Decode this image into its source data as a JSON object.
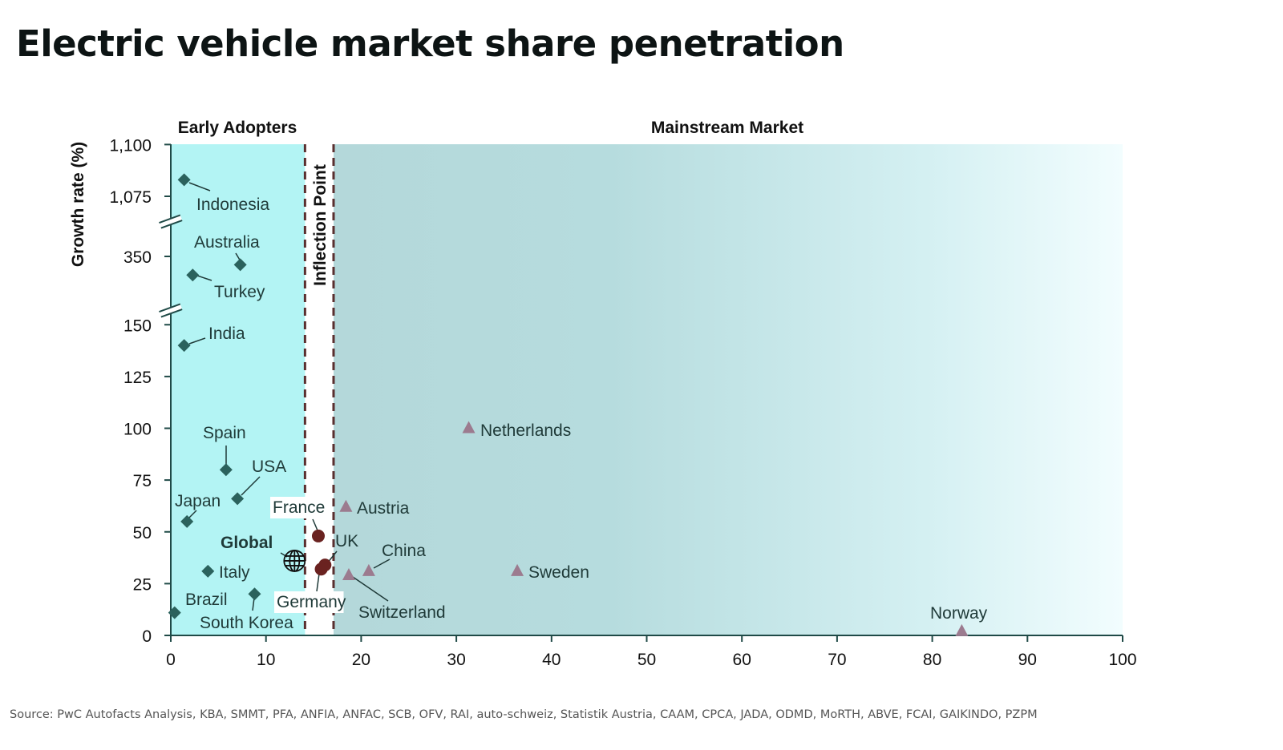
{
  "title": "Electric vehicle market share penetration",
  "source": "Source: PwC Autofacts Analysis, KBA, SMMT, PFA, ANFIA, ANFAC, SCB, OFV, RAI, auto-schweiz, Statistik Austria, CAAM, CPCA, JADA, ODMD, MoRTH, ABVE, FCAI, GAIKINDO, PZPM",
  "chart_data": {
    "type": "scatter",
    "title": "Electric vehicle market share penetration",
    "xlabel": "",
    "ylabel": "Growth rate (%)",
    "xlim": [
      0,
      100
    ],
    "xticks": [
      0,
      10,
      20,
      30,
      40,
      50,
      60,
      70,
      80,
      90,
      100
    ],
    "yticks": [
      0,
      25,
      50,
      75,
      100,
      125,
      150,
      350,
      1075,
      1100
    ],
    "ytick_labels": [
      "0",
      "25",
      "50",
      "75",
      "100",
      "125",
      "150",
      "350",
      "1,075",
      "1,100"
    ],
    "y_axis_breaks": [
      "150-350",
      "350-1,075"
    ],
    "grid": false,
    "regions": [
      {
        "label": "Early Adopters",
        "x_range": [
          0,
          14.1
        ],
        "color": "#b3f4f4"
      },
      {
        "label": "Inflection Point",
        "x_range": [
          14.1,
          17.1
        ],
        "color": "#ffffff"
      },
      {
        "label": "Mainstream Market",
        "x_range": [
          17.1,
          100
        ],
        "color": "#b4d8da"
      }
    ],
    "colors": {
      "early": "#2b625d",
      "inflection": "#6a2220",
      "mainstream": "#9c7b8f",
      "divider": "#5a2f2f"
    },
    "points": [
      {
        "label": "Indonesia",
        "x": 1.4,
        "y": 1083,
        "group": "early"
      },
      {
        "label": "Australia",
        "x": 7.3,
        "y": 346,
        "group": "early"
      },
      {
        "label": "Turkey",
        "x": 2.3,
        "y": 341,
        "group": "early"
      },
      {
        "label": "India",
        "x": 1.4,
        "y": 140,
        "group": "early"
      },
      {
        "label": "Spain",
        "x": 5.8,
        "y": 80,
        "group": "early"
      },
      {
        "label": "USA",
        "x": 7.0,
        "y": 66,
        "group": "early"
      },
      {
        "label": "Japan",
        "x": 1.7,
        "y": 55,
        "group": "early"
      },
      {
        "label": "Italy",
        "x": 3.9,
        "y": 31,
        "group": "early"
      },
      {
        "label": "Brazil",
        "x": 0.4,
        "y": 11,
        "group": "early"
      },
      {
        "label": "South Korea",
        "x": 8.8,
        "y": 20,
        "group": "early"
      },
      {
        "label": "Global",
        "x": 13.0,
        "y": 36,
        "group": "global"
      },
      {
        "label": "France",
        "x": 15.5,
        "y": 48,
        "group": "inflection"
      },
      {
        "label": "UK",
        "x": 16.2,
        "y": 34,
        "group": "inflection"
      },
      {
        "label": "Germany",
        "x": 15.8,
        "y": 32,
        "group": "inflection"
      },
      {
        "label": "Austria",
        "x": 18.4,
        "y": 62,
        "group": "mainstream"
      },
      {
        "label": "Switzerland",
        "x": 18.7,
        "y": 29,
        "group": "mainstream"
      },
      {
        "label": "China",
        "x": 20.8,
        "y": 31,
        "group": "mainstream"
      },
      {
        "label": "Netherlands",
        "x": 31.3,
        "y": 100,
        "group": "mainstream"
      },
      {
        "label": "Sweden",
        "x": 36.4,
        "y": 31,
        "group": "mainstream"
      },
      {
        "label": "Norway",
        "x": 83.1,
        "y": 2,
        "group": "mainstream"
      }
    ]
  }
}
